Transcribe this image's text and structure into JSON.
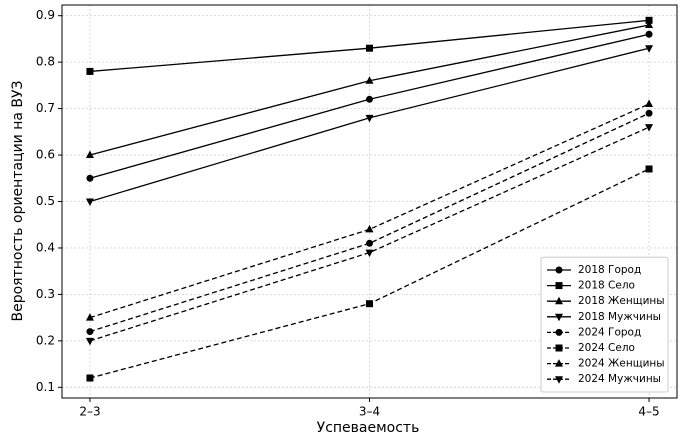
{
  "chart_data": {
    "type": "line",
    "xlabel": "Успеваемость",
    "ylabel": "Вероятность ориентации на ВУЗ",
    "categories": [
      "2–3",
      "3–4",
      "4–5"
    ],
    "series": [
      {
        "name": "2018 Город",
        "color": "#000000",
        "linestyle": "solid",
        "marker": "circle",
        "values": [
          0.55,
          0.72,
          0.86
        ]
      },
      {
        "name": "2018 Село",
        "color": "#000000",
        "linestyle": "solid",
        "marker": "square",
        "values": [
          0.78,
          0.83,
          0.89
        ]
      },
      {
        "name": "2018 Женщины",
        "color": "#000000",
        "linestyle": "solid",
        "marker": "triangle-up",
        "values": [
          0.6,
          0.76,
          0.88
        ]
      },
      {
        "name": "2018 Мужчины",
        "color": "#000000",
        "linestyle": "solid",
        "marker": "triangle-down",
        "values": [
          0.5,
          0.68,
          0.83
        ]
      },
      {
        "name": "2024 Город",
        "color": "#000000",
        "linestyle": "dashed",
        "marker": "circle",
        "values": [
          0.22,
          0.41,
          0.69
        ]
      },
      {
        "name": "2024 Село",
        "color": "#000000",
        "linestyle": "dashed",
        "marker": "square",
        "values": [
          0.12,
          0.28,
          0.57
        ]
      },
      {
        "name": "2024 Женщины",
        "color": "#000000",
        "linestyle": "dashed",
        "marker": "triangle-up",
        "values": [
          0.25,
          0.44,
          0.71
        ]
      },
      {
        "name": "2024 Мужчины",
        "color": "#000000",
        "linestyle": "dashed",
        "marker": "triangle-down",
        "values": [
          0.2,
          0.39,
          0.66
        ]
      }
    ],
    "ylim": [
      0.077,
      0.923
    ],
    "yticks": [
      0.1,
      0.2,
      0.3,
      0.4,
      0.5,
      0.6,
      0.7,
      0.8,
      0.9
    ],
    "grid": true,
    "legend": "lower right"
  }
}
